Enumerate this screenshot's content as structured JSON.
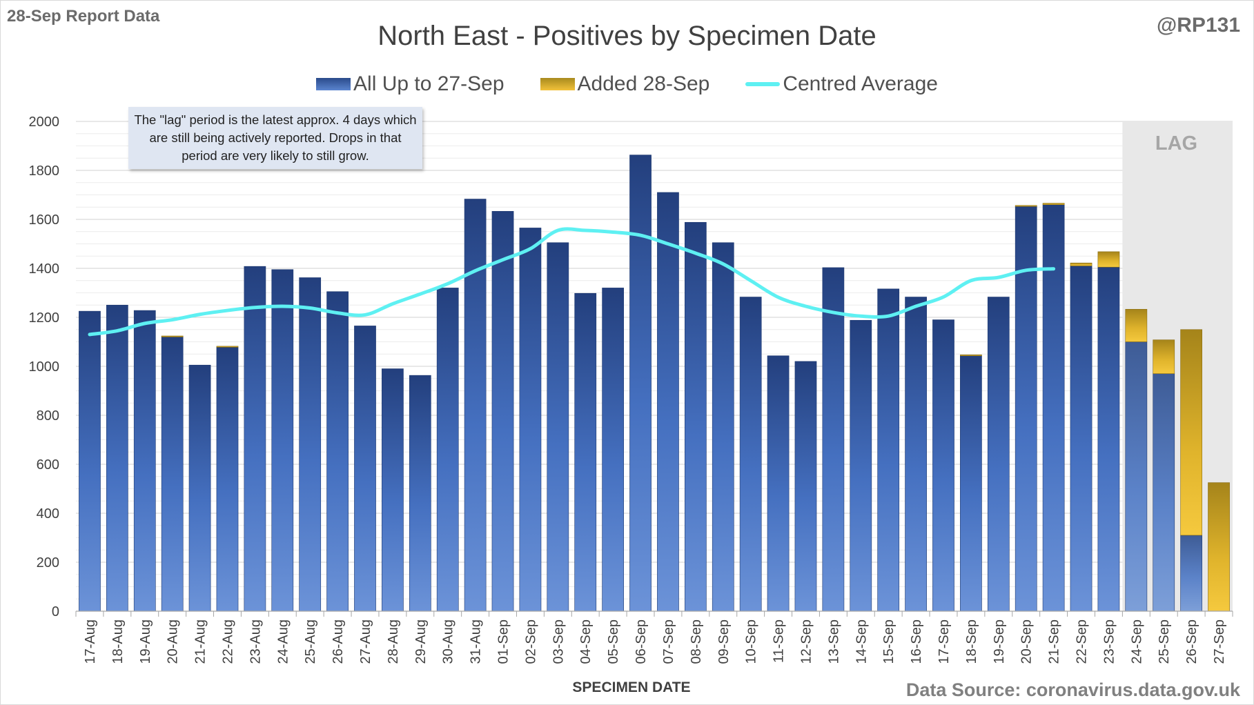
{
  "report_label": "28-Sep Report Data",
  "handle": "@RP131",
  "source": "Data Source: coronavirus.data.gov.uk",
  "note": "The \"lag\" period is the latest approx. 4 days which are still being actively reported.  Drops in that period are very likely to still grow.",
  "lag_label": "LAG",
  "colors": {
    "base": "#2b4b8a",
    "added": "#d6a91f",
    "average": "#5ef0f2",
    "lag_shade": "#e8e8e8"
  },
  "chart_data": {
    "type": "bar",
    "stacked": true,
    "title": "North East - Positives by Specimen Date",
    "xlabel": "SPECIMEN DATE",
    "ylabel": "",
    "ylim": [
      0,
      2000
    ],
    "yticks": [
      0,
      200,
      400,
      600,
      800,
      1000,
      1200,
      1400,
      1600,
      1800,
      2000
    ],
    "grid": true,
    "legend_position": "top",
    "lag_categories": [
      "24-Sep",
      "25-Sep",
      "26-Sep",
      "27-Sep"
    ],
    "categories": [
      "17-Aug",
      "18-Aug",
      "19-Aug",
      "20-Aug",
      "21-Aug",
      "22-Aug",
      "23-Aug",
      "24-Aug",
      "25-Aug",
      "26-Aug",
      "27-Aug",
      "28-Aug",
      "29-Aug",
      "30-Aug",
      "31-Aug",
      "01-Sep",
      "02-Sep",
      "03-Sep",
      "04-Sep",
      "05-Sep",
      "06-Sep",
      "07-Sep",
      "08-Sep",
      "09-Sep",
      "10-Sep",
      "11-Sep",
      "12-Sep",
      "13-Sep",
      "14-Sep",
      "15-Sep",
      "16-Sep",
      "17-Sep",
      "18-Sep",
      "19-Sep",
      "20-Sep",
      "21-Sep",
      "22-Sep",
      "23-Sep",
      "24-Sep",
      "25-Sep",
      "26-Sep",
      "27-Sep"
    ],
    "series": [
      {
        "name": "All Up to 27-Sep",
        "kind": "bar",
        "values": [
          1225,
          1250,
          1228,
          1120,
          1005,
          1078,
          1408,
          1395,
          1362,
          1305,
          1165,
          990,
          963,
          1320,
          1683,
          1633,
          1565,
          1505,
          1298,
          1320,
          1863,
          1710,
          1588,
          1505,
          1283,
          1043,
          1020,
          1403,
          1188,
          1316,
          1283,
          1190,
          1043,
          1283,
          1653,
          1660,
          1410,
          1405,
          1100,
          970,
          310,
          0
        ]
      },
      {
        "name": "Added 28-Sep",
        "kind": "bar",
        "values": [
          0,
          0,
          0,
          4,
          0,
          4,
          0,
          0,
          0,
          0,
          0,
          0,
          0,
          0,
          0,
          0,
          0,
          0,
          0,
          0,
          0,
          0,
          0,
          0,
          0,
          0,
          0,
          0,
          0,
          0,
          0,
          0,
          4,
          0,
          4,
          6,
          12,
          63,
          133,
          138,
          840,
          525
        ]
      },
      {
        "name": "Centred Average",
        "kind": "line",
        "values": [
          1130,
          1145,
          1175,
          1190,
          1212,
          1228,
          1240,
          1245,
          1238,
          1218,
          1210,
          1255,
          1295,
          1337,
          1390,
          1435,
          1480,
          1555,
          1555,
          1548,
          1535,
          1500,
          1462,
          1418,
          1350,
          1282,
          1245,
          1220,
          1205,
          1205,
          1245,
          1283,
          1350,
          1363,
          1392,
          1398,
          null,
          null,
          null,
          null,
          null,
          null
        ]
      }
    ]
  }
}
